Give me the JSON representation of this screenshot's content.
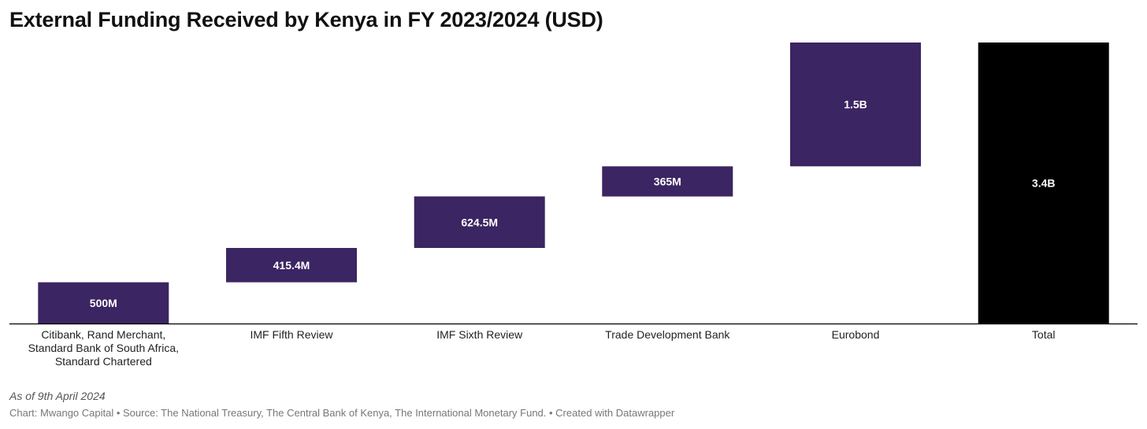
{
  "chart_data": {
    "type": "bar",
    "subtype": "waterfall",
    "title": "External Funding Received by Kenya in FY 2023/2024 (USD)",
    "categories": [
      [
        "Citibank, Rand Merchant,",
        "Standard Bank of South Africa,",
        "Standard Chartered"
      ],
      [
        "IMF Fifth Review"
      ],
      [
        "IMF Sixth Review"
      ],
      [
        "Trade Development Bank"
      ],
      [
        "Eurobond"
      ],
      [
        "Total"
      ]
    ],
    "values": [
      500,
      415.4,
      624.5,
      365,
      1500,
      3404.9
    ],
    "value_labels": [
      "500M",
      "415.4M",
      "624.5M",
      "365M",
      "1.5B",
      "3.4B"
    ],
    "is_total": [
      false,
      false,
      false,
      false,
      false,
      true
    ],
    "units": "USD millions",
    "ylim": [
      0,
      3404.9
    ],
    "colors": {
      "increase": "#3b2562",
      "total": "#000000",
      "label": "#ffffff",
      "baseline": "#000000"
    },
    "grid": false,
    "legend": "none"
  },
  "notes": {
    "as_of": "As of 9th April 2024",
    "credit": "Chart: Mwango Capital • Source: The National Treasury, The Central Bank of Kenya, The International Monetary Fund. • Created with Datawrapper"
  }
}
